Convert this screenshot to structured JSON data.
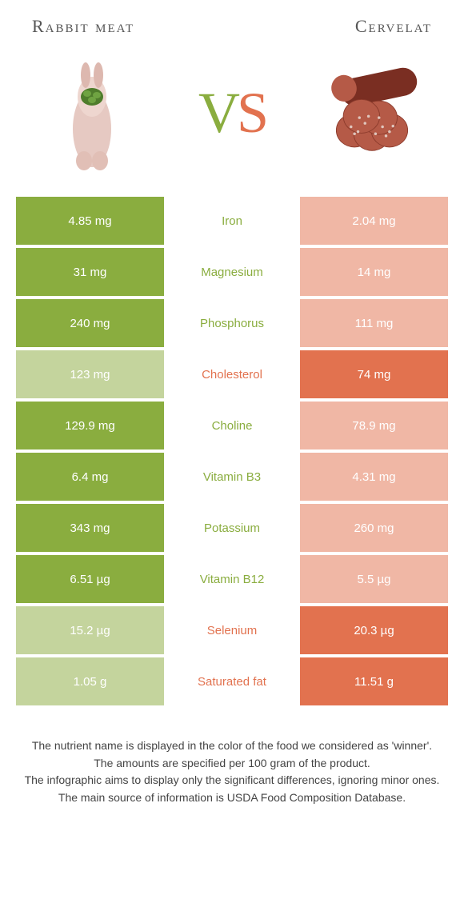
{
  "header": {
    "left_title": "Rabbit meat",
    "right_title": "Cervelat"
  },
  "vs": {
    "v": "V",
    "s": "S"
  },
  "colors": {
    "green": "#8aad3f",
    "green_faded": "#c4d49d",
    "orange": "#e2724f",
    "orange_faded": "#f0b7a5",
    "background": "#ffffff"
  },
  "rows": [
    {
      "left": "4.85 mg",
      "label": "Iron",
      "right": "2.04 mg",
      "winner": "left"
    },
    {
      "left": "31 mg",
      "label": "Magnesium",
      "right": "14 mg",
      "winner": "left"
    },
    {
      "left": "240 mg",
      "label": "Phosphorus",
      "right": "111 mg",
      "winner": "left"
    },
    {
      "left": "123 mg",
      "label": "Cholesterol",
      "right": "74 mg",
      "winner": "right"
    },
    {
      "left": "129.9 mg",
      "label": "Choline",
      "right": "78.9 mg",
      "winner": "left"
    },
    {
      "left": "6.4 mg",
      "label": "Vitamin B3",
      "right": "4.31 mg",
      "winner": "left"
    },
    {
      "left": "343 mg",
      "label": "Potassium",
      "right": "260 mg",
      "winner": "left"
    },
    {
      "left": "6.51 µg",
      "label": "Vitamin B12",
      "right": "5.5 µg",
      "winner": "left"
    },
    {
      "left": "15.2 µg",
      "label": "Selenium",
      "right": "20.3 µg",
      "winner": "right"
    },
    {
      "left": "1.05 g",
      "label": "Saturated fat",
      "right": "11.51 g",
      "winner": "right"
    }
  ],
  "footnotes": [
    "The nutrient name is displayed in the color of the food we considered as 'winner'.",
    "The amounts are specified per 100 gram of the product.",
    "The infographic aims to display only the significant differences, ignoring minor ones.",
    "The main source of information is USDA Food Composition Database."
  ]
}
